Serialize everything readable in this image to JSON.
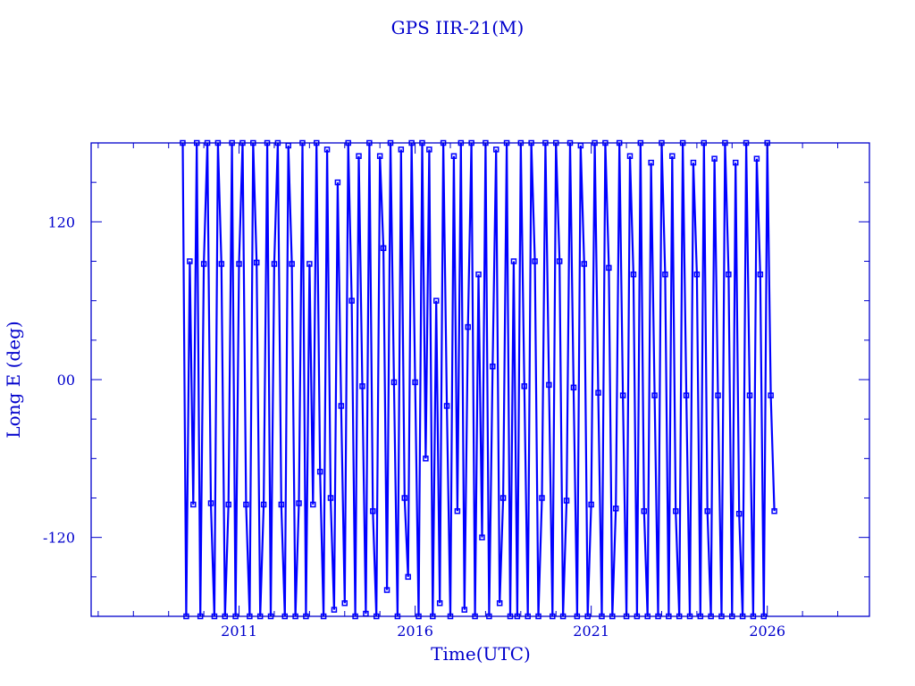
{
  "chart_data": {
    "type": "line",
    "title": "GPS IIR-21(M)",
    "xlabel": "Time(UTC)",
    "ylabel": "Long E (deg)",
    "xlim": [
      2006.8,
      2028.9
    ],
    "ylim": [
      -180,
      180
    ],
    "x_ticks": [
      2011,
      2016,
      2021,
      2026
    ],
    "x_tick_labels": [
      "2011",
      "2016",
      "2021",
      "2026"
    ],
    "y_ticks": [
      -120,
      0,
      120
    ],
    "y_tick_labels": [
      "-120",
      "00",
      "120"
    ],
    "x_minor_step": 1,
    "y_minor_step": 30,
    "grid": false,
    "markers": "square",
    "colors": {
      "series": "#0000ff",
      "axes": "#0000cc"
    },
    "points": [
      [
        2009.4,
        180
      ],
      [
        2009.5,
        -180
      ],
      [
        2009.6,
        90
      ],
      [
        2009.7,
        -95
      ],
      [
        2009.8,
        180
      ],
      [
        2009.9,
        -180
      ],
      [
        2010.0,
        88
      ],
      [
        2010.1,
        180
      ],
      [
        2010.2,
        -94
      ],
      [
        2010.3,
        -180
      ],
      [
        2010.4,
        180
      ],
      [
        2010.5,
        88
      ],
      [
        2010.6,
        -180
      ],
      [
        2010.7,
        -95
      ],
      [
        2010.8,
        180
      ],
      [
        2010.9,
        -180
      ],
      [
        2011.0,
        88
      ],
      [
        2011.1,
        180
      ],
      [
        2011.2,
        -95
      ],
      [
        2011.3,
        -180
      ],
      [
        2011.4,
        180
      ],
      [
        2011.5,
        89
      ],
      [
        2011.6,
        -180
      ],
      [
        2011.7,
        -95
      ],
      [
        2011.8,
        180
      ],
      [
        2011.9,
        -180
      ],
      [
        2012.0,
        88
      ],
      [
        2012.1,
        180
      ],
      [
        2012.2,
        -95
      ],
      [
        2012.3,
        -180
      ],
      [
        2012.4,
        178
      ],
      [
        2012.5,
        88
      ],
      [
        2012.6,
        -180
      ],
      [
        2012.7,
        -94
      ],
      [
        2012.8,
        180
      ],
      [
        2012.9,
        -180
      ],
      [
        2013.0,
        88
      ],
      [
        2013.1,
        -95
      ],
      [
        2013.2,
        180
      ],
      [
        2013.3,
        -70
      ],
      [
        2013.4,
        -180
      ],
      [
        2013.5,
        175
      ],
      [
        2013.6,
        -90
      ],
      [
        2013.7,
        -175
      ],
      [
        2013.8,
        150
      ],
      [
        2013.9,
        -20
      ],
      [
        2014.0,
        -170
      ],
      [
        2014.1,
        180
      ],
      [
        2014.2,
        60
      ],
      [
        2014.3,
        -180
      ],
      [
        2014.4,
        170
      ],
      [
        2014.5,
        -5
      ],
      [
        2014.6,
        -178
      ],
      [
        2014.7,
        180
      ],
      [
        2014.8,
        -100
      ],
      [
        2014.9,
        -180
      ],
      [
        2015.0,
        170
      ],
      [
        2015.1,
        100
      ],
      [
        2015.2,
        -160
      ],
      [
        2015.3,
        180
      ],
      [
        2015.4,
        -2
      ],
      [
        2015.5,
        -180
      ],
      [
        2015.6,
        175
      ],
      [
        2015.7,
        -90
      ],
      [
        2015.8,
        -150
      ],
      [
        2015.9,
        180
      ],
      [
        2016.0,
        -2
      ],
      [
        2016.1,
        -180
      ],
      [
        2016.2,
        180
      ],
      [
        2016.3,
        -60
      ],
      [
        2016.4,
        175
      ],
      [
        2016.5,
        -180
      ],
      [
        2016.6,
        60
      ],
      [
        2016.7,
        -170
      ],
      [
        2016.8,
        180
      ],
      [
        2016.9,
        -20
      ],
      [
        2017.0,
        -180
      ],
      [
        2017.1,
        170
      ],
      [
        2017.2,
        -100
      ],
      [
        2017.3,
        180
      ],
      [
        2017.4,
        -175
      ],
      [
        2017.5,
        40
      ],
      [
        2017.6,
        180
      ],
      [
        2017.7,
        -180
      ],
      [
        2017.8,
        80
      ],
      [
        2017.9,
        -120
      ],
      [
        2018.0,
        180
      ],
      [
        2018.1,
        -180
      ],
      [
        2018.2,
        10
      ],
      [
        2018.3,
        175
      ],
      [
        2018.4,
        -170
      ],
      [
        2018.5,
        -90
      ],
      [
        2018.6,
        180
      ],
      [
        2018.7,
        -180
      ],
      [
        2018.8,
        90
      ],
      [
        2018.9,
        -180
      ],
      [
        2019.0,
        180
      ],
      [
        2019.1,
        -5
      ],
      [
        2019.2,
        -180
      ],
      [
        2019.3,
        180
      ],
      [
        2019.4,
        90
      ],
      [
        2019.5,
        -180
      ],
      [
        2019.6,
        -90
      ],
      [
        2019.7,
        180
      ],
      [
        2019.8,
        -4
      ],
      [
        2019.9,
        -180
      ],
      [
        2020.0,
        180
      ],
      [
        2020.1,
        90
      ],
      [
        2020.2,
        -180
      ],
      [
        2020.3,
        -92
      ],
      [
        2020.4,
        180
      ],
      [
        2020.5,
        -6
      ],
      [
        2020.6,
        -180
      ],
      [
        2020.7,
        178
      ],
      [
        2020.8,
        88
      ],
      [
        2020.9,
        -180
      ],
      [
        2021.0,
        -95
      ],
      [
        2021.1,
        180
      ],
      [
        2021.2,
        -10
      ],
      [
        2021.3,
        -180
      ],
      [
        2021.4,
        180
      ],
      [
        2021.5,
        85
      ],
      [
        2021.6,
        -180
      ],
      [
        2021.7,
        -98
      ],
      [
        2021.8,
        180
      ],
      [
        2021.9,
        -12
      ],
      [
        2022.0,
        -180
      ],
      [
        2022.1,
        170
      ],
      [
        2022.2,
        80
      ],
      [
        2022.3,
        -180
      ],
      [
        2022.4,
        180
      ],
      [
        2022.5,
        -100
      ],
      [
        2022.6,
        -180
      ],
      [
        2022.7,
        165
      ],
      [
        2022.8,
        -12
      ],
      [
        2022.9,
        -180
      ],
      [
        2023.0,
        180
      ],
      [
        2023.1,
        80
      ],
      [
        2023.2,
        -180
      ],
      [
        2023.3,
        170
      ],
      [
        2023.4,
        -100
      ],
      [
        2023.5,
        -180
      ],
      [
        2023.6,
        180
      ],
      [
        2023.7,
        -12
      ],
      [
        2023.8,
        -180
      ],
      [
        2023.9,
        165
      ],
      [
        2024.0,
        80
      ],
      [
        2024.1,
        -180
      ],
      [
        2024.2,
        180
      ],
      [
        2024.3,
        -100
      ],
      [
        2024.4,
        -180
      ],
      [
        2024.5,
        168
      ],
      [
        2024.6,
        -12
      ],
      [
        2024.7,
        -180
      ],
      [
        2024.8,
        180
      ],
      [
        2024.9,
        80
      ],
      [
        2025.0,
        -180
      ],
      [
        2025.1,
        165
      ],
      [
        2025.2,
        -102
      ],
      [
        2025.3,
        -180
      ],
      [
        2025.4,
        180
      ],
      [
        2025.5,
        -12
      ],
      [
        2025.6,
        -180
      ],
      [
        2025.7,
        168
      ],
      [
        2025.8,
        80
      ],
      [
        2025.9,
        -180
      ],
      [
        2026.0,
        180
      ],
      [
        2026.1,
        -12
      ],
      [
        2026.2,
        -100
      ]
    ]
  }
}
